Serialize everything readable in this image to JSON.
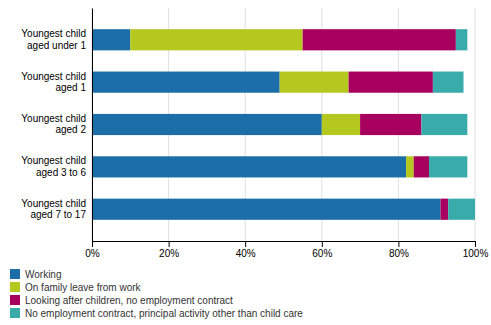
{
  "chart_data": {
    "type": "bar",
    "orientation": "horizontal",
    "stacked": true,
    "categories": [
      "Youngest child\naged under 1",
      "Youngest child\naged 1",
      "Youngest child\naged 2",
      "Youngest child\naged 3 to 6",
      "Youngest child\naged 7 to 17"
    ],
    "series": [
      {
        "name": "Working",
        "color": "#1b6ea8",
        "values": [
          10,
          49,
          60,
          82,
          91
        ]
      },
      {
        "name": "On family leave from work",
        "color": "#b5c820",
        "values": [
          45,
          18,
          10,
          2,
          0
        ]
      },
      {
        "name": "Looking after children, no employment contract",
        "color": "#a8005e",
        "values": [
          40,
          22,
          16,
          4,
          2
        ]
      },
      {
        "name": "No employment contract, principal activity other than child care",
        "color": "#3aabab",
        "values": [
          3,
          8,
          12,
          10,
          7
        ]
      }
    ],
    "xlim": [
      0,
      100
    ],
    "xticks": [
      {
        "value": 0,
        "label": "0%"
      },
      {
        "value": 20,
        "label": "20%"
      },
      {
        "value": 40,
        "label": "40%"
      },
      {
        "value": 60,
        "label": "60%"
      },
      {
        "value": 80,
        "label": "80%"
      },
      {
        "value": 100,
        "label": "100%"
      }
    ],
    "grid": true,
    "legend": "bottom"
  }
}
